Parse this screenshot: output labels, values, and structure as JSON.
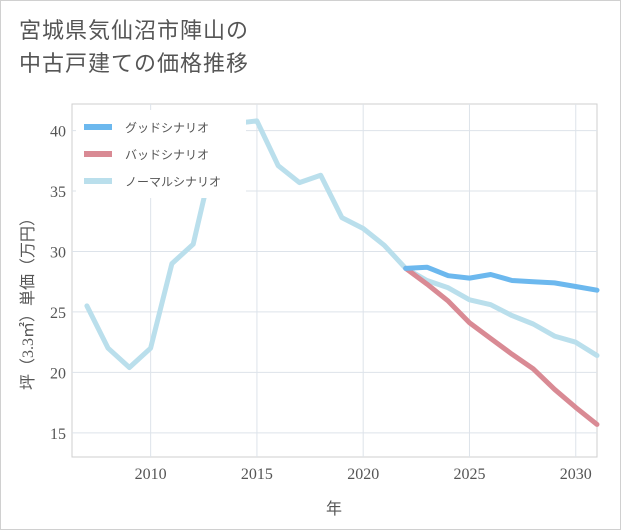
{
  "title_lines": [
    "宮城県気仙沼市陣山の",
    "中古戸建ての価格推移"
  ],
  "chart_data": {
    "type": "line",
    "xlabel": "年",
    "ylabel": "坪（3.3㎡）単価（万円）",
    "xlim": [
      2006.3,
      2031
    ],
    "ylim": [
      13,
      42.2
    ],
    "xticks": [
      2010,
      2015,
      2020,
      2025,
      2030
    ],
    "yticks": [
      15,
      20,
      25,
      30,
      35,
      40
    ],
    "grid": true,
    "legend_position": "top-left",
    "series": [
      {
        "name": "グッドシナリオ",
        "color": "#6cb8ee",
        "x": [
          2022,
          2023,
          2024,
          2025,
          2026,
          2027,
          2028,
          2029,
          2030,
          2031
        ],
        "values": [
          28.6,
          28.7,
          28.0,
          27.8,
          28.1,
          27.6,
          27.5,
          27.4,
          27.1,
          26.8
        ]
      },
      {
        "name": "バッドシナリオ",
        "color": "#d98a94",
        "x": [
          2022,
          2023,
          2024,
          2025,
          2026,
          2027,
          2028,
          2029,
          2030,
          2031
        ],
        "values": [
          28.6,
          27.3,
          25.9,
          24.1,
          22.8,
          21.5,
          20.3,
          18.6,
          17.1,
          15.7
        ]
      },
      {
        "name": "ノーマルシナリオ",
        "color": "#badfec",
        "x": [
          2007,
          2008,
          2009,
          2010,
          2011,
          2012,
          2013,
          2014,
          2015,
          2016,
          2017,
          2018,
          2019,
          2020,
          2021,
          2022,
          2023,
          2024,
          2025,
          2026,
          2027,
          2028,
          2029,
          2030,
          2031
        ],
        "values": [
          25.5,
          22.0,
          20.4,
          22.0,
          29.0,
          30.6,
          38.1,
          40.6,
          40.8,
          37.1,
          35.7,
          36.3,
          32.8,
          31.9,
          30.5,
          28.6,
          27.6,
          27.0,
          26.0,
          25.6,
          24.7,
          24.0,
          23.0,
          22.5,
          21.4
        ]
      }
    ]
  }
}
